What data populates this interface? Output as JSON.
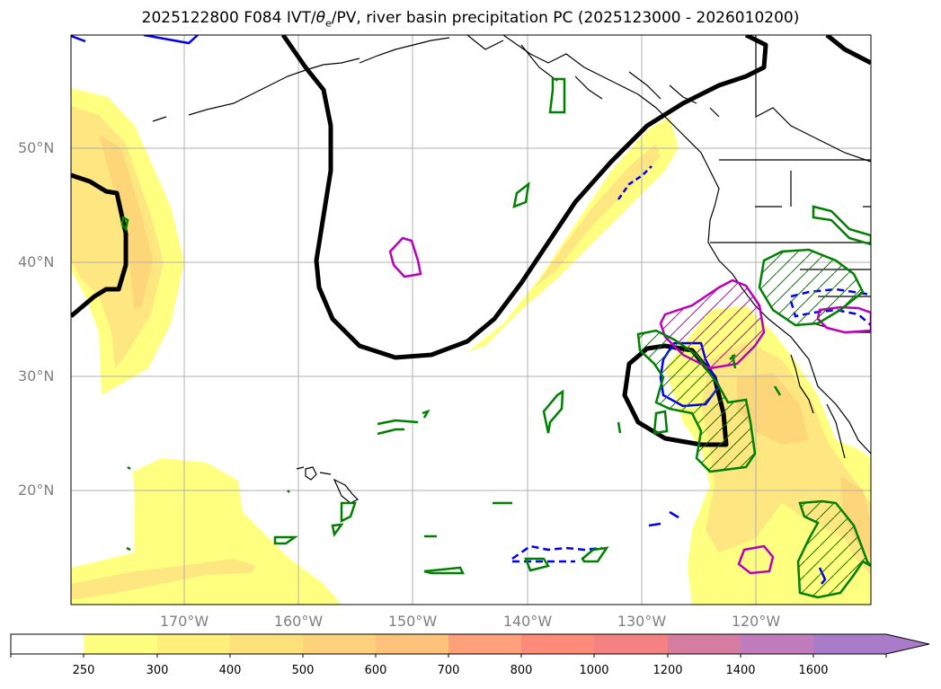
{
  "title": {
    "main": "2025122800 F084 IVT/",
    "theta": "θ",
    "sub": "e",
    "rest": "/PV, river basin precipitation PC (2025123000 - 2026010200)"
  },
  "map": {
    "lon_range": [
      "180°",
      "110°W"
    ],
    "lat_range": [
      "10°N",
      "60°N"
    ],
    "lat_labels": [
      "50°N",
      "40°N",
      "30°N",
      "20°N"
    ],
    "lon_labels": [
      "170°W",
      "160°W",
      "150°W",
      "140°W",
      "130°W",
      "120°W"
    ],
    "colors": {
      "ivt_250": "#ffff80",
      "ivt_300": "#fee680",
      "ivt_400": "#fed67a",
      "pv_contour": "#000000",
      "theta_contour_blue": "#0000ee",
      "theta_contour_magenta": "#bb00bb",
      "precip_green": "#008000",
      "coastline": "#000000",
      "grid": "#b0b0b0"
    }
  },
  "colorbar": {
    "labels": [
      "250",
      "300",
      "400",
      "500",
      "600",
      "700",
      "800",
      "1000",
      "1200",
      "1400",
      "1600"
    ],
    "colors": [
      "#ffffff",
      "#ffff80",
      "#fef07a",
      "#fee07a",
      "#fed27a",
      "#fec27a",
      "#fea07a",
      "#fe8a7a",
      "#f48282",
      "#d67ca0",
      "#c07cbc",
      "#a87cc8"
    ]
  }
}
